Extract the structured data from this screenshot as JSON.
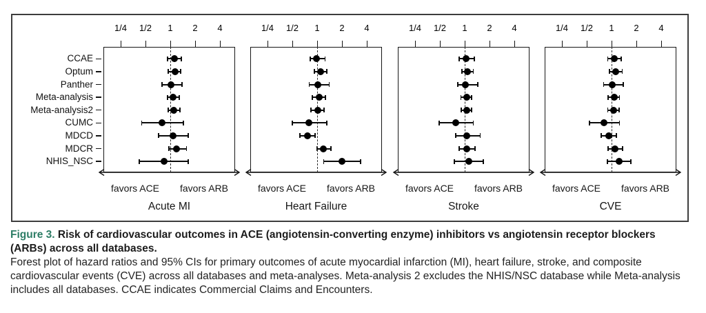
{
  "caption": {
    "label": "Figure 3.",
    "title": "Risk of cardiovascular outcomes in ACE (angiotensin-converting enzyme) inhibitors vs angiotensin receptor blockers (ARBs) across all databases.",
    "body": "Forest plot of hazard ratios and 95% CIs for primary outcomes of acute myocardial infarction (MI), heart failure, stroke, and composite cardiovascular events (CVE) across all databases and meta-analyses. Meta-analysis 2 excludes the NHIS/NSC database while Meta-analysis includes all databases. CCAE indicates Commercial Claims and Encounters."
  },
  "colors": {
    "accent_teal": "#2e7d66",
    "ink": "#111111",
    "figure_border": "#3d3d3d"
  },
  "chart_data": {
    "type": "forest",
    "x_scale": "log2",
    "x_tick_labels": [
      "1/4",
      "1/2",
      "1",
      "2",
      "4"
    ],
    "x_tick_values": [
      0.25,
      0.5,
      1,
      2,
      4
    ],
    "reference_line": 1.0,
    "arrow_label_left": "favors ACE",
    "arrow_label_right": "favors ARB",
    "row_labels": [
      "CCAE",
      "Optum",
      "Panther",
      "Meta-analysis",
      "Meta-analysis2",
      "CUMC",
      "MDCD",
      "MDCR",
      "NHIS_NSC"
    ],
    "panels": [
      {
        "title": "Acute MI",
        "estimates": [
          {
            "hr": 1.12,
            "lo": 0.92,
            "hi": 1.36
          },
          {
            "hr": 1.14,
            "lo": 0.94,
            "hi": 1.33
          },
          {
            "hr": 1.02,
            "lo": 0.79,
            "hi": 1.38
          },
          {
            "hr": 1.09,
            "lo": 0.93,
            "hi": 1.29
          },
          {
            "hr": 1.11,
            "lo": 0.94,
            "hi": 1.31
          },
          {
            "hr": 0.79,
            "lo": 0.45,
            "hi": 1.45
          },
          {
            "hr": 1.09,
            "lo": 0.72,
            "hi": 1.65
          },
          {
            "hr": 1.2,
            "lo": 0.96,
            "hi": 1.57
          },
          {
            "hr": 0.84,
            "lo": 0.42,
            "hi": 1.65
          }
        ]
      },
      {
        "title": "Heart Failure",
        "estimates": [
          {
            "hr": 0.99,
            "lo": 0.82,
            "hi": 1.25
          },
          {
            "hr": 1.1,
            "lo": 0.93,
            "hi": 1.31
          },
          {
            "hr": 1.01,
            "lo": 0.8,
            "hi": 1.4
          },
          {
            "hr": 1.05,
            "lo": 0.88,
            "hi": 1.26
          },
          {
            "hr": 1.01,
            "lo": 0.84,
            "hi": 1.21
          },
          {
            "hr": 0.8,
            "lo": 0.5,
            "hi": 1.31
          },
          {
            "hr": 0.77,
            "lo": 0.62,
            "hi": 0.95
          },
          {
            "hr": 1.18,
            "lo": 0.99,
            "hi": 1.47
          },
          {
            "hr": 1.99,
            "lo": 1.2,
            "hi": 3.38
          }
        ]
      },
      {
        "title": "Stroke",
        "estimates": [
          {
            "hr": 1.03,
            "lo": 0.86,
            "hi": 1.3
          },
          {
            "hr": 1.07,
            "lo": 0.92,
            "hi": 1.27
          },
          {
            "hr": 1.02,
            "lo": 0.82,
            "hi": 1.45
          },
          {
            "hr": 1.05,
            "lo": 0.9,
            "hi": 1.22
          },
          {
            "hr": 1.05,
            "lo": 0.91,
            "hi": 1.22
          },
          {
            "hr": 0.78,
            "lo": 0.49,
            "hi": 1.27
          },
          {
            "hr": 1.06,
            "lo": 0.78,
            "hi": 1.54
          },
          {
            "hr": 1.06,
            "lo": 0.86,
            "hi": 1.34
          },
          {
            "hr": 1.12,
            "lo": 0.75,
            "hi": 1.67
          }
        ]
      },
      {
        "title": "CVE",
        "estimates": [
          {
            "hr": 1.08,
            "lo": 0.9,
            "hi": 1.3
          },
          {
            "hr": 1.12,
            "lo": 0.94,
            "hi": 1.35
          },
          {
            "hr": 1.01,
            "lo": 0.8,
            "hi": 1.38
          },
          {
            "hr": 1.07,
            "lo": 0.91,
            "hi": 1.25
          },
          {
            "hr": 1.05,
            "lo": 0.9,
            "hi": 1.23
          },
          {
            "hr": 0.81,
            "lo": 0.54,
            "hi": 1.25
          },
          {
            "hr": 0.93,
            "lo": 0.75,
            "hi": 1.15
          },
          {
            "hr": 1.11,
            "lo": 0.91,
            "hi": 1.37
          },
          {
            "hr": 1.23,
            "lo": 0.89,
            "hi": 1.72
          }
        ]
      }
    ]
  }
}
